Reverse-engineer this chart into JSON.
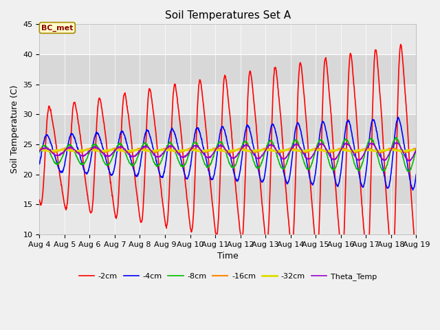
{
  "title": "Soil Temperatures Set A",
  "xlabel": "Time",
  "ylabel": "Soil Temperature (C)",
  "ylim": [
    10,
    45
  ],
  "background_color": "#f0f0f0",
  "plot_bg_color": "#e8e8e8",
  "tick_labels": [
    "Aug 4",
    "Aug 5",
    "Aug 6",
    "Aug 7",
    "Aug 8",
    "Aug 9",
    "Aug 10",
    "Aug 11",
    "Aug 12",
    "Aug 13",
    "Aug 14",
    "Aug 15",
    "Aug 16",
    "Aug 17",
    "Aug 18",
    "Aug 19"
  ],
  "annotation_text": "BC_met",
  "annotation_color": "#8B0000",
  "annotation_bg": "#ffffcc",
  "series": {
    "-2cm": {
      "color": "#ff0000",
      "lw": 1.2
    },
    "-4cm": {
      "color": "#0000ff",
      "lw": 1.2
    },
    "-8cm": {
      "color": "#00bb00",
      "lw": 1.2
    },
    "-16cm": {
      "color": "#ff8800",
      "lw": 1.5
    },
    "-32cm": {
      "color": "#dddd00",
      "lw": 2.0
    },
    "Theta_Temp": {
      "color": "#9900cc",
      "lw": 1.2
    }
  },
  "yticks": [
    10,
    15,
    20,
    25,
    30,
    35,
    40,
    45
  ],
  "band_colors": [
    "#e8e8e8",
    "#d8d8d8"
  ],
  "band_ranges": [
    [
      10,
      15
    ],
    [
      15,
      20
    ],
    [
      20,
      25
    ],
    [
      25,
      30
    ],
    [
      30,
      35
    ],
    [
      35,
      40
    ],
    [
      40,
      45
    ]
  ]
}
